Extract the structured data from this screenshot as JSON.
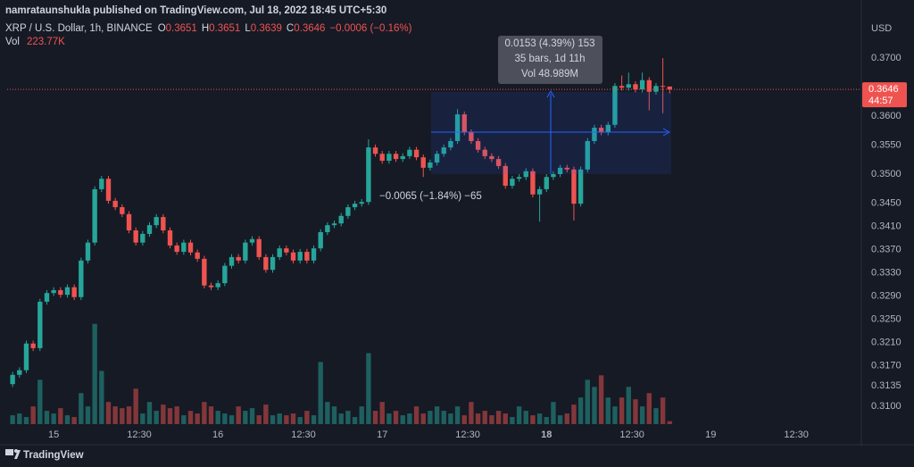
{
  "chart_data": {
    "type": "candlestick",
    "publisher": "namrataunshukla published on TradingView.com, Jul 18, 2022 18:45 UTC+5:30",
    "title": "XRP / U.S. Dollar, 1h, BINANCE",
    "ohlc_labels": [
      "O",
      "H",
      "L",
      "C"
    ],
    "change_label": "−0.0006 (−0.16%)",
    "y_axis_label": "USD",
    "countdown": "44:57",
    "logo": "TradingView",
    "up_color": "#26a69a",
    "down_color": "#ef5350",
    "grid": false,
    "x": [
      -6,
      -5,
      -4,
      -3,
      -2,
      -1,
      0,
      1,
      2,
      3,
      4,
      5,
      6,
      7,
      8,
      9,
      10,
      11,
      12,
      13,
      14,
      15,
      16,
      17,
      18,
      19,
      20,
      21,
      22,
      23,
      24,
      25,
      26,
      27,
      28,
      29,
      30,
      31,
      32,
      33,
      34,
      35,
      36,
      37,
      38,
      39,
      40,
      41,
      42,
      43,
      44,
      45,
      46,
      47,
      48,
      49,
      50,
      51,
      52,
      53,
      54,
      55,
      56,
      57,
      58,
      59,
      60,
      61,
      62,
      63,
      64,
      65,
      66,
      67,
      68,
      69,
      70,
      71,
      72,
      73,
      74,
      75,
      76,
      77,
      78,
      79,
      80,
      81,
      82,
      83,
      84,
      85,
      86,
      87,
      88,
      89,
      90
    ],
    "open": [
      0.3138,
      0.3154,
      0.3162,
      0.3208,
      0.32,
      0.328,
      0.3295,
      0.33,
      0.3292,
      0.3305,
      0.3288,
      0.3351,
      0.3382,
      0.3474,
      0.3492,
      0.3454,
      0.3443,
      0.3431,
      0.3403,
      0.3382,
      0.3397,
      0.3412,
      0.3426,
      0.3403,
      0.3377,
      0.3366,
      0.3382,
      0.3365,
      0.3354,
      0.3308,
      0.3305,
      0.3312,
      0.3342,
      0.3357,
      0.3351,
      0.3382,
      0.3388,
      0.3357,
      0.3335,
      0.3357,
      0.3372,
      0.3365,
      0.3351,
      0.3366,
      0.3351,
      0.3372,
      0.34,
      0.3412,
      0.3415,
      0.3428,
      0.3443,
      0.3449,
      0.3452,
      0.3546,
      0.3535,
      0.3523,
      0.3535,
      0.3526,
      0.3531,
      0.3542,
      0.3529,
      0.3511,
      0.352,
      0.3535,
      0.3546,
      0.3557,
      0.3603,
      0.3572,
      0.3557,
      0.3542,
      0.3531,
      0.3526,
      0.3514,
      0.348,
      0.3492,
      0.3495,
      0.3505,
      0.3465,
      0.3474,
      0.3495,
      0.35,
      0.3511,
      0.3508,
      0.3449,
      0.3508,
      0.3557,
      0.358,
      0.3572,
      0.3585,
      0.3652,
      0.3649,
      0.3655,
      0.3646,
      0.3662,
      0.3642,
      0.3652,
      0.3651
    ],
    "high": [
      0.3159,
      0.3167,
      0.3213,
      0.3213,
      0.3285,
      0.33,
      0.3305,
      0.3305,
      0.331,
      0.331,
      0.3356,
      0.3387,
      0.3479,
      0.3497,
      0.3497,
      0.3459,
      0.3448,
      0.3436,
      0.3408,
      0.3402,
      0.3417,
      0.3431,
      0.3431,
      0.3408,
      0.3382,
      0.3387,
      0.3387,
      0.337,
      0.3359,
      0.3313,
      0.3317,
      0.3347,
      0.3362,
      0.3362,
      0.3387,
      0.3393,
      0.3393,
      0.3362,
      0.3362,
      0.3377,
      0.3377,
      0.337,
      0.3371,
      0.3371,
      0.3377,
      0.3405,
      0.3417,
      0.342,
      0.3433,
      0.3448,
      0.3454,
      0.3457,
      0.356,
      0.3551,
      0.354,
      0.354,
      0.354,
      0.3536,
      0.3547,
      0.3547,
      0.3534,
      0.3525,
      0.354,
      0.3551,
      0.3562,
      0.3612,
      0.3608,
      0.3577,
      0.3562,
      0.3547,
      0.3536,
      0.3531,
      0.3519,
      0.3497,
      0.35,
      0.351,
      0.351,
      0.3479,
      0.35,
      0.3505,
      0.3516,
      0.3516,
      0.3513,
      0.3513,
      0.3562,
      0.3585,
      0.3585,
      0.359,
      0.3657,
      0.367,
      0.3675,
      0.366,
      0.3675,
      0.3667,
      0.3657,
      0.37,
      0.3651
    ],
    "low": [
      0.3133,
      0.3149,
      0.3157,
      0.3195,
      0.3195,
      0.3275,
      0.329,
      0.3287,
      0.3287,
      0.3283,
      0.3283,
      0.3346,
      0.3377,
      0.3469,
      0.3449,
      0.3438,
      0.3426,
      0.3398,
      0.3377,
      0.3377,
      0.3392,
      0.3407,
      0.3398,
      0.3372,
      0.3361,
      0.3361,
      0.336,
      0.3349,
      0.3303,
      0.33,
      0.33,
      0.3307,
      0.3337,
      0.3346,
      0.3346,
      0.3377,
      0.3352,
      0.333,
      0.333,
      0.3352,
      0.336,
      0.3346,
      0.3346,
      0.3346,
      0.3346,
      0.3367,
      0.3395,
      0.3407,
      0.341,
      0.3423,
      0.3438,
      0.3444,
      0.3447,
      0.353,
      0.3518,
      0.3518,
      0.3521,
      0.3521,
      0.3526,
      0.3524,
      0.3495,
      0.3506,
      0.3515,
      0.353,
      0.3541,
      0.3552,
      0.3567,
      0.3552,
      0.3537,
      0.3526,
      0.3521,
      0.3509,
      0.3475,
      0.3475,
      0.3487,
      0.349,
      0.346,
      0.3418,
      0.3469,
      0.349,
      0.3495,
      0.3503,
      0.342,
      0.3444,
      0.3503,
      0.3552,
      0.3567,
      0.3567,
      0.358,
      0.3644,
      0.3644,
      0.3641,
      0.3641,
      0.361,
      0.3637,
      0.3605,
      0.3639
    ],
    "close": [
      0.3154,
      0.3162,
      0.3208,
      0.32,
      0.328,
      0.3295,
      0.33,
      0.3292,
      0.3305,
      0.3288,
      0.3351,
      0.3382,
      0.3474,
      0.3492,
      0.3454,
      0.3443,
      0.3431,
      0.3403,
      0.3382,
      0.3397,
      0.3412,
      0.3426,
      0.3403,
      0.3377,
      0.3366,
      0.3382,
      0.3365,
      0.3354,
      0.3308,
      0.3305,
      0.3312,
      0.3342,
      0.3357,
      0.3351,
      0.3382,
      0.3388,
      0.3357,
      0.3335,
      0.3357,
      0.3372,
      0.3365,
      0.3351,
      0.3366,
      0.3351,
      0.3372,
      0.34,
      0.3412,
      0.3415,
      0.3428,
      0.3443,
      0.3449,
      0.3452,
      0.3546,
      0.3535,
      0.3523,
      0.3535,
      0.3526,
      0.3531,
      0.3542,
      0.3529,
      0.3511,
      0.352,
      0.3535,
      0.3546,
      0.3557,
      0.3603,
      0.3572,
      0.3557,
      0.3542,
      0.3531,
      0.3526,
      0.3514,
      0.348,
      0.3492,
      0.3495,
      0.3505,
      0.3465,
      0.3474,
      0.3495,
      0.35,
      0.3511,
      0.3508,
      0.3449,
      0.3508,
      0.3557,
      0.358,
      0.3572,
      0.3585,
      0.3652,
      0.3649,
      0.3655,
      0.3646,
      0.3662,
      0.3642,
      0.3652,
      0.3651,
      0.3646
    ],
    "volume": {
      "name": "Vol",
      "axis": "y2",
      "values": [
        670000,
        804000,
        536000,
        1340000,
        3350000,
        1005000,
        804000,
        1206000,
        670000,
        536000,
        2345000,
        1340000,
        7571000,
        4020000,
        1675000,
        1340000,
        1206000,
        1340000,
        2680000,
        804000,
        1675000,
        1005000,
        1474000,
        1206000,
        1340000,
        670000,
        1005000,
        804000,
        1675000,
        1340000,
        1005000,
        804000,
        670000,
        1340000,
        1005000,
        1206000,
        670000,
        1474000,
        670000,
        804000,
        670000,
        804000,
        536000,
        1005000,
        670000,
        4690000,
        1675000,
        1340000,
        804000,
        1005000,
        536000,
        1340000,
        5360000,
        1005000,
        1675000,
        804000,
        1005000,
        670000,
        804000,
        1340000,
        804000,
        1005000,
        1340000,
        1005000,
        804000,
        1340000,
        670000,
        1675000,
        804000,
        1005000,
        670000,
        1005000,
        804000,
        536000,
        1340000,
        1005000,
        670000,
        804000,
        536000,
        1675000,
        670000,
        804000,
        1474000,
        2010000,
        3350000,
        2814000,
        3685000,
        2010000,
        1340000,
        2010000,
        2814000,
        1876000,
        1340000,
        2345000,
        1206000,
        2010000,
        223770
      ],
      "value_labels": [
        null,
        null,
        null,
        null,
        null,
        null,
        null,
        null,
        null,
        null,
        null,
        null,
        null,
        null,
        null,
        null,
        null,
        null,
        null,
        null,
        null,
        null,
        null,
        null,
        null,
        null,
        null,
        null,
        null,
        null,
        null,
        null,
        null,
        null,
        null,
        null,
        null,
        null,
        null,
        null,
        null,
        null,
        null,
        null,
        null,
        null,
        null,
        null,
        null,
        null,
        null,
        null,
        null,
        null,
        null,
        null,
        null,
        null,
        null,
        null,
        null,
        null,
        null,
        null,
        null,
        null,
        null,
        null,
        null,
        null,
        null,
        null,
        null,
        null,
        null,
        null,
        null,
        null,
        null,
        null,
        null,
        null,
        null,
        null,
        null,
        null,
        null,
        null,
        null,
        null,
        null,
        null,
        null,
        null,
        null,
        null,
        "223.77K"
      ]
    },
    "xlim": [
      -6.8,
      118
    ],
    "xticks": [
      {
        "value": 0,
        "label": "15"
      },
      {
        "value": 12.5,
        "label": "12:30"
      },
      {
        "value": 24,
        "label": "16"
      },
      {
        "value": 36.5,
        "label": "12:30"
      },
      {
        "value": 48,
        "label": "17"
      },
      {
        "value": 60.5,
        "label": "12:30"
      },
      {
        "value": 72,
        "label": "18"
      },
      {
        "value": 84.5,
        "label": "12:30"
      },
      {
        "value": 96,
        "label": "19"
      },
      {
        "value": 108.5,
        "label": "12:30"
      }
    ],
    "ylim": [
      0.3069,
      0.3754
    ],
    "yticks": [
      {
        "value": 0.37,
        "label": "0.3700"
      },
      {
        "value": 0.36,
        "label": "0.3600"
      },
      {
        "value": 0.355,
        "label": "0.3550"
      },
      {
        "value": 0.35,
        "label": "0.3500"
      },
      {
        "value": 0.345,
        "label": "0.3450"
      },
      {
        "value": 0.341,
        "label": "0.3410"
      },
      {
        "value": 0.337,
        "label": "0.3370"
      },
      {
        "value": 0.333,
        "label": "0.3330"
      },
      {
        "value": 0.329,
        "label": "0.3290"
      },
      {
        "value": 0.325,
        "label": "0.3250"
      },
      {
        "value": 0.321,
        "label": "0.3210"
      },
      {
        "value": 0.317,
        "label": "0.3170"
      },
      {
        "value": 0.3135,
        "label": "0.3135"
      },
      {
        "value": 0.31,
        "label": "0.3100"
      }
    ],
    "y2lim": [
      0,
      30000000
    ],
    "measure_label": [
      "0.0153 (4.39%) 153",
      "35 bars, 1d 11h",
      "Vol 48.989M"
    ],
    "annotation": "−0.0065 (−1.84%) −65"
  }
}
